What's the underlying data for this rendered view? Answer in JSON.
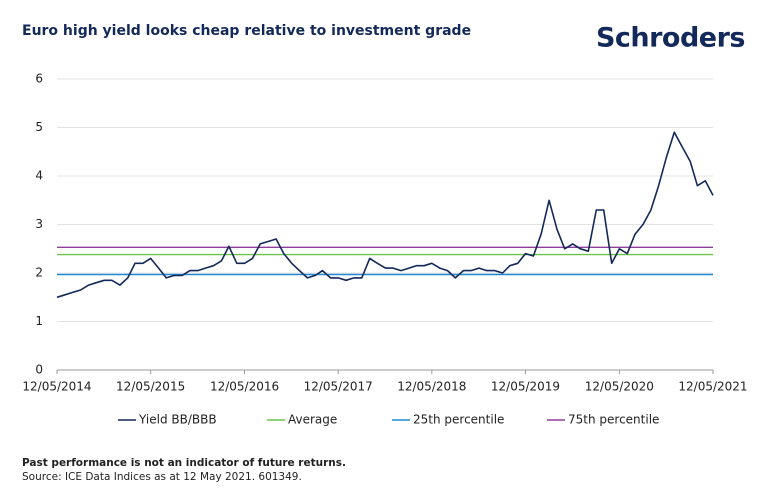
{
  "brand": "Schroders",
  "chart_data": {
    "type": "line",
    "title": "Euro high yield looks cheap relative to investment grade",
    "x": [
      "12/05/2014",
      "12/06/2014",
      "12/07/2014",
      "12/08/2014",
      "12/09/2014",
      "12/10/2014",
      "12/11/2014",
      "12/12/2014",
      "12/01/2015",
      "12/02/2015",
      "12/03/2015",
      "12/04/2015",
      "12/05/2015",
      "12/06/2015",
      "12/07/2015",
      "12/08/2015",
      "12/09/2015",
      "12/10/2015",
      "12/11/2015",
      "12/12/2015",
      "12/01/2016",
      "12/02/2016",
      "12/03/2016",
      "12/04/2016",
      "12/05/2016",
      "12/06/2016",
      "12/07/2016",
      "12/08/2016",
      "12/09/2016",
      "12/10/2016",
      "12/11/2016",
      "12/12/2016",
      "12/01/2017",
      "12/02/2017",
      "12/03/2017",
      "12/04/2017",
      "12/05/2017",
      "12/06/2017",
      "12/07/2017",
      "12/08/2017",
      "12/09/2017",
      "12/10/2017",
      "12/11/2017",
      "12/12/2017",
      "12/01/2018",
      "12/02/2018",
      "12/03/2018",
      "12/04/2018",
      "12/05/2018",
      "12/06/2018",
      "12/07/2018",
      "12/08/2018",
      "12/09/2018",
      "12/10/2018",
      "12/11/2018",
      "12/12/2018",
      "12/01/2019",
      "12/02/2019",
      "12/03/2019",
      "12/04/2019",
      "12/05/2019",
      "12/06/2019",
      "12/07/2019",
      "12/08/2019",
      "12/09/2019",
      "12/10/2019",
      "12/11/2019",
      "12/12/2019",
      "12/01/2020",
      "12/02/2020",
      "12/03/2020",
      "12/04/2020",
      "12/05/2020",
      "12/06/2020",
      "12/07/2020",
      "12/08/2020",
      "12/09/2020",
      "12/10/2020",
      "12/11/2020",
      "12/12/2020",
      "12/01/2021",
      "12/02/2021",
      "12/03/2021",
      "12/04/2021",
      "12/05/2021"
    ],
    "series": [
      {
        "name": "Yield BB/BBB",
        "color": "#13295a",
        "values": [
          1.5,
          1.55,
          1.6,
          1.65,
          1.75,
          1.8,
          1.85,
          1.85,
          1.75,
          1.9,
          2.2,
          2.2,
          2.3,
          2.1,
          1.9,
          1.95,
          1.95,
          2.05,
          2.05,
          2.1,
          2.15,
          2.25,
          2.55,
          2.2,
          2.2,
          2.3,
          2.6,
          2.65,
          2.7,
          2.4,
          2.2,
          2.05,
          1.9,
          1.95,
          2.05,
          1.9,
          1.9,
          1.85,
          1.9,
          1.9,
          2.3,
          2.2,
          2.1,
          2.1,
          2.05,
          2.1,
          2.15,
          2.15,
          2.2,
          2.1,
          2.05,
          1.9,
          2.05,
          2.05,
          2.1,
          2.05,
          2.05,
          2.0,
          2.15,
          2.2,
          2.4,
          2.35,
          2.8,
          3.5,
          2.9,
          2.5,
          2.6,
          2.5,
          2.45,
          3.3,
          3.3,
          2.2,
          2.5,
          2.4,
          2.8,
          3.0,
          3.3,
          3.8,
          4.4,
          4.9,
          4.6,
          4.3,
          3.8,
          3.9,
          3.6
        ]
      },
      {
        "name": "Average",
        "color": "#6cc24a",
        "x": [
          "12/05/2014",
          "12/05/2021"
        ],
        "values": [
          2.38,
          2.38
        ]
      },
      {
        "name": "25th percentile",
        "color": "#1f8ad1",
        "x": [
          "12/05/2014",
          "12/05/2021"
        ],
        "values": [
          1.97,
          1.97
        ]
      },
      {
        "name": "75th percentile",
        "color": "#8e3f9a",
        "x": [
          "12/05/2014",
          "12/05/2021"
        ],
        "values": [
          2.53,
          2.53
        ]
      }
    ],
    "xlim": [
      "12/05/2014",
      "12/05/2021"
    ],
    "xticks": [
      "12/05/2014",
      "12/05/2015",
      "12/05/2016",
      "12/05/2017",
      "12/05/2018",
      "12/05/2019",
      "12/05/2020",
      "12/05/2021"
    ],
    "ylim": [
      0,
      6
    ],
    "yticks": [
      0,
      1,
      2,
      3,
      4,
      5,
      6
    ],
    "grid": true,
    "legend": "bottom"
  },
  "notes": [
    "Past performance is not an indicator of future returns.",
    "Source: ICE Data Indices as at 12 May 2021. 601349."
  ]
}
